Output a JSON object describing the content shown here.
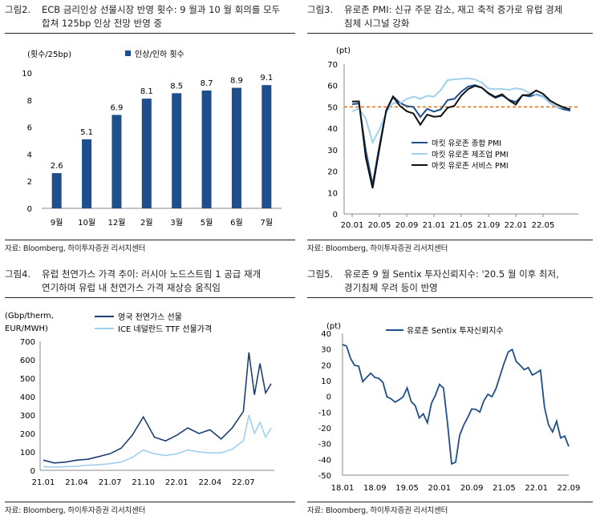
{
  "figures": [
    {
      "number": "그림2.",
      "title_lines": [
        "ECB 금리인상 선물시장 반영 횟수: 9 월과 10 월 회의를 모두",
        "합쳐 125bp 인상 전망 반영 중"
      ],
      "source": "자료: Bloomberg, 하이투자증권 리서치센터"
    },
    {
      "number": "그림3.",
      "title_lines": [
        "유로존 PMI: 신규 주문 감소, 재고 축적 증가로 유럽 경제",
        "침체 시그널 강화"
      ],
      "source": "자료: Bloomberg, 하이투자증권 리서치센터"
    },
    {
      "number": "그림4.",
      "title_lines": [
        "유럽 천연가스 가격 추이: 러시아 노드스트림 1 공급 재개",
        "연기하며 유럽 내 천연가스 가격 재상승 움직임"
      ],
      "source": "자료: Bloomberg, 하이투자증권 리서치센터"
    },
    {
      "number": "그림5.",
      "title_lines": [
        "유로존 9 월 Sentix 투자신뢰지수: '20.5 월 이후 최저,",
        "경기침체 우려 등이 반영"
      ],
      "source": "자료: Bloomberg, 하이투자증권 리서치센터"
    }
  ],
  "chart_data": [
    {
      "type": "bar",
      "ylabel": "(횟수/25bp)",
      "categories": [
        "9월",
        "10월",
        "12월",
        "2월",
        "3월",
        "5월",
        "6월",
        "7월"
      ],
      "series": [
        {
          "name": "인상/인하 횟수",
          "values": [
            2.6,
            5.1,
            6.9,
            8.1,
            8.5,
            8.7,
            8.9,
            9.1
          ],
          "color": "#1f4e8c"
        }
      ],
      "data_labels": [
        "2.6",
        "5.1",
        "6.9",
        "8.1",
        "8.5",
        "8.7",
        "8.9",
        "9.1"
      ],
      "ylim": [
        0,
        10
      ],
      "yticks": [
        "0",
        "2",
        "4",
        "6",
        "8",
        "10"
      ],
      "legend_position": "top",
      "grid": false
    },
    {
      "type": "line",
      "ylabel": "(pt)",
      "x": [
        "20.01",
        "20.02",
        "20.03",
        "20.04",
        "20.05",
        "20.06",
        "20.07",
        "20.08",
        "20.09",
        "20.10",
        "20.11",
        "20.12",
        "21.01",
        "21.02",
        "21.03",
        "21.04",
        "21.05",
        "21.06",
        "21.07",
        "21.08",
        "21.09",
        "21.10",
        "21.11",
        "21.12",
        "22.01",
        "22.02",
        "22.03",
        "22.04",
        "22.05",
        "22.06",
        "22.07",
        "22.08",
        "22.09"
      ],
      "xticks": [
        "20.01",
        "20.05",
        "20.09",
        "21.01",
        "21.05",
        "21.09",
        "22.01",
        "22.05"
      ],
      "ylim": [
        0,
        70
      ],
      "yticks": [
        "0",
        "10",
        "20",
        "30",
        "40",
        "50",
        "60",
        "70"
      ],
      "series": [
        {
          "name": "마킷 유로존 종합 PMI",
          "color": "#1f4e8c",
          "values": [
            51.3,
            51.6,
            29.7,
            13.6,
            31.9,
            48.5,
            54.9,
            51.9,
            50.4,
            50.0,
            45.3,
            49.1,
            47.8,
            48.8,
            53.2,
            53.8,
            57.1,
            59.5,
            60.2,
            59.0,
            56.2,
            54.2,
            55.4,
            53.3,
            52.3,
            55.5,
            54.9,
            55.8,
            54.8,
            52.0,
            49.9,
            48.9,
            48.2
          ]
        },
        {
          "name": "마킷 유로존 제조업 PMI",
          "color": "#9fd0ee",
          "values": [
            47.9,
            49.2,
            44.5,
            33.4,
            39.4,
            47.4,
            51.8,
            51.7,
            53.7,
            54.8,
            53.8,
            55.2,
            54.8,
            57.9,
            62.5,
            62.9,
            63.1,
            63.4,
            62.8,
            61.4,
            58.6,
            58.3,
            58.4,
            58.0,
            58.7,
            58.2,
            56.5,
            55.5,
            54.6,
            52.1,
            49.8,
            49.6,
            48.9
          ]
        },
        {
          "name": "마킷 유로존 서비스 PMI",
          "color": "#111111",
          "values": [
            52.5,
            52.6,
            26.4,
            12.0,
            30.5,
            48.3,
            54.7,
            50.5,
            48.0,
            46.9,
            41.7,
            46.4,
            45.4,
            45.7,
            49.6,
            50.5,
            55.2,
            58.3,
            59.8,
            59.0,
            56.4,
            54.6,
            55.9,
            53.1,
            51.1,
            55.5,
            55.6,
            57.7,
            56.1,
            53.0,
            51.2,
            49.8,
            48.9
          ]
        }
      ],
      "reference_line": {
        "value": 50,
        "color": "#e8731c"
      },
      "legend_position": "center-right",
      "grid": false
    },
    {
      "type": "line",
      "ylabel": "(Gbp/therm,\nEUR/MWH)",
      "ylabel_lines": [
        "(Gbp/therm,",
        "EUR/MWH)"
      ],
      "x_start": "21.01",
      "xticks": [
        "21.01",
        "21.04",
        "21.07",
        "21.10",
        "22.01",
        "22.04",
        "22.07"
      ],
      "ylim": [
        0,
        700
      ],
      "yticks": [
        "0",
        "100",
        "200",
        "300",
        "400",
        "500",
        "600",
        "700"
      ],
      "series": [
        {
          "name": "영국 천연가스 선물",
          "color": "#1f3f73",
          "x": [
            0,
            1,
            2,
            3,
            4,
            5,
            6,
            7,
            8,
            9,
            10,
            11,
            12,
            13,
            14,
            15,
            16,
            17,
            18,
            18.5,
            19,
            19.5,
            20,
            20.5
          ],
          "values": [
            55,
            40,
            45,
            55,
            60,
            75,
            90,
            120,
            190,
            290,
            180,
            160,
            190,
            230,
            200,
            220,
            170,
            230,
            320,
            640,
            410,
            580,
            420,
            470
          ]
        },
        {
          "name": "ICE 네덜란드 TTF 선물가격",
          "color": "#9fd0ee",
          "x": [
            0,
            1,
            2,
            3,
            4,
            5,
            6,
            7,
            8,
            9,
            10,
            11,
            12,
            13,
            14,
            15,
            16,
            17,
            18,
            18.5,
            19,
            19.5,
            20,
            20.5
          ],
          "values": [
            20,
            18,
            20,
            22,
            28,
            30,
            36,
            45,
            70,
            110,
            90,
            80,
            90,
            110,
            100,
            95,
            95,
            115,
            160,
            300,
            200,
            260,
            180,
            230
          ]
        }
      ],
      "legend_position": "top",
      "grid": false
    },
    {
      "type": "line",
      "ylabel": "(pt)",
      "x": [
        "18.01",
        "18.02",
        "18.03",
        "18.04",
        "18.05",
        "18.06",
        "18.07",
        "18.08",
        "18.09",
        "18.10",
        "18.11",
        "18.12",
        "19.01",
        "19.02",
        "19.03",
        "19.04",
        "19.05",
        "19.06",
        "19.07",
        "19.08",
        "19.09",
        "19.10",
        "19.11",
        "19.12",
        "20.01",
        "20.02",
        "20.03",
        "20.04",
        "20.05",
        "20.06",
        "20.07",
        "20.08",
        "20.09",
        "20.10",
        "20.11",
        "20.12",
        "21.01",
        "21.02",
        "21.03",
        "21.04",
        "21.05",
        "21.06",
        "21.07",
        "21.08",
        "21.09",
        "21.10",
        "21.11",
        "21.12",
        "22.01",
        "22.02",
        "22.03",
        "22.04",
        "22.05",
        "22.06",
        "22.07",
        "22.08",
        "22.09"
      ],
      "xticks": [
        "18.01",
        "18.09",
        "19.05",
        "20.01",
        "20.09",
        "21.05",
        "22.01",
        "22.09"
      ],
      "ylim": [
        -50,
        40
      ],
      "yticks": [
        "40",
        "30",
        "20",
        "10",
        "0",
        "-10",
        "-20",
        "-30",
        "-40",
        "-50"
      ],
      "series": [
        {
          "name": "유로존 Sentix 투자신뢰지수",
          "color": "#1f4e8c",
          "values": [
            32.9,
            31.9,
            24.0,
            19.6,
            19.2,
            9.3,
            12.1,
            14.7,
            12.0,
            11.4,
            8.8,
            -0.3,
            -1.5,
            -3.7,
            -2.2,
            -0.3,
            5.3,
            -3.3,
            -5.8,
            -13.7,
            -11.1,
            -16.8,
            -4.5,
            0.7,
            7.6,
            5.2,
            -17.1,
            -42.9,
            -41.8,
            -24.8,
            -18.2,
            -13.4,
            -8.0,
            -8.3,
            -10.0,
            -2.7,
            1.3,
            -0.2,
            5.0,
            13.1,
            21.0,
            28.1,
            29.8,
            22.2,
            19.6,
            16.9,
            18.3,
            13.5,
            14.9,
            16.6,
            -7.0,
            -18.0,
            -22.6,
            -15.8,
            -26.4,
            -25.2,
            -31.8
          ]
        }
      ],
      "legend_position": "top",
      "grid": false
    }
  ]
}
